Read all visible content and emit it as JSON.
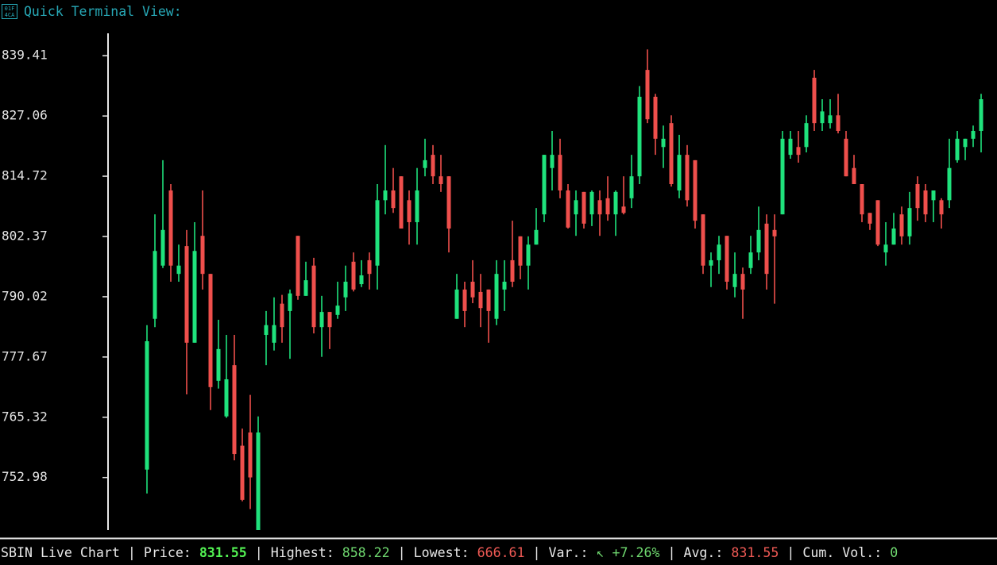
{
  "header": {
    "icon_lines": [
      "01F",
      "4CA"
    ],
    "title": "Quick Terminal View:"
  },
  "chart_data": {
    "type": "candlestick",
    "up_color": "#1fe27c",
    "down_color": "#ef4f4c",
    "ylim": [
      742.2,
      844.0
    ],
    "yticks": [
      839.41,
      827.06,
      814.72,
      802.37,
      790.02,
      777.67,
      765.32,
      752.98
    ],
    "grid": false,
    "open": [
      754.6,
      785.5,
      796.4,
      811.8,
      794.7,
      800.4,
      780.6,
      802.5,
      794.7,
      772.8,
      765.5,
      776.0,
      759.5,
      762.2,
      742.2,
      782.2,
      780.6,
      788.6,
      787.1,
      802.5,
      790.2,
      796.4,
      783.8,
      786.9,
      786.3,
      789.9,
      797.2,
      792.6,
      797.5,
      796.4,
      809.8,
      811.8,
      814.7,
      809.8,
      805.3,
      816.4,
      819.1,
      814.7,
      814.7,
      785.5,
      791.5,
      793.1,
      791.0,
      791.5,
      785.5,
      791.5,
      797.5,
      802.4,
      796.4,
      800.7,
      806.9,
      816.4,
      819.1,
      811.8,
      806.9,
      811.5,
      806.9,
      809.8,
      810.2,
      806.9,
      808.5,
      810.2,
      814.7,
      836.5,
      831.0,
      820.7,
      825.6,
      811.8,
      819.1,
      818.0,
      806.9,
      796.4,
      797.5,
      802.5,
      792.0,
      794.7,
      795.9,
      799.1,
      805.0,
      803.7,
      806.9,
      819.1,
      820.7,
      820.7,
      834.9,
      825.6,
      825.6,
      827.2,
      822.4,
      816.4,
      813.1,
      807.2,
      809.8,
      799.1,
      800.7,
      806.9,
      802.4,
      813.1,
      811.8,
      809.8,
      809.8,
      809.8,
      818.0,
      820.7,
      822.4,
      824.0
    ],
    "high": [
      784.2,
      806.9,
      818.0,
      813.1,
      800.7,
      803.7,
      805.3,
      811.8,
      794.7,
      785.3,
      782.2,
      782.2,
      763.0,
      769.9,
      765.5,
      787.1,
      789.9,
      790.4,
      791.5,
      802.5,
      797.2,
      798.0,
      790.2,
      786.9,
      793.1,
      796.4,
      799.1,
      797.5,
      799.1,
      813.1,
      821.1,
      816.4,
      814.7,
      811.8,
      816.4,
      822.4,
      821.1,
      819.1,
      814.7,
      794.7,
      793.1,
      797.5,
      794.7,
      791.5,
      797.5,
      797.5,
      805.6,
      802.4,
      802.4,
      808.2,
      819.1,
      824.0,
      822.4,
      813.1,
      811.8,
      811.5,
      811.8,
      811.8,
      814.7,
      811.8,
      814.7,
      819.1,
      833.2,
      840.7,
      831.6,
      825.1,
      827.2,
      823.2,
      821.1,
      818.0,
      806.9,
      799.1,
      802.5,
      802.5,
      799.1,
      796.0,
      802.5,
      808.5,
      806.9,
      806.9,
      824.0,
      824.0,
      824.0,
      827.2,
      836.5,
      830.5,
      830.5,
      831.6,
      824.0,
      819.1,
      813.1,
      807.2,
      809.8,
      805.3,
      807.2,
      808.5,
      811.5,
      814.7,
      813.1,
      811.8,
      810.2,
      822.4,
      824.0,
      822.4,
      825.1,
      831.6
    ],
    "low": [
      749.7,
      783.8,
      795.9,
      793.1,
      793.1,
      770.0,
      780.6,
      791.5,
      766.8,
      771.2,
      765.2,
      756.5,
      748.1,
      746.5,
      742.2,
      776.0,
      779.0,
      780.6,
      777.3,
      789.4,
      790.2,
      782.5,
      777.7,
      779.3,
      785.5,
      787.1,
      791.1,
      792.0,
      791.5,
      791.5,
      806.9,
      807.2,
      804.0,
      800.7,
      800.7,
      814.7,
      813.1,
      811.5,
      799.1,
      785.5,
      783.8,
      788.7,
      783.8,
      780.6,
      784.2,
      787.1,
      792.0,
      793.6,
      791.5,
      800.7,
      805.3,
      811.8,
      810.2,
      804.0,
      802.5,
      804.0,
      804.5,
      802.5,
      805.6,
      802.5,
      806.9,
      808.2,
      813.1,
      825.6,
      819.1,
      816.4,
      812.6,
      810.2,
      808.5,
      804.0,
      794.7,
      792.0,
      794.7,
      791.5,
      789.9,
      785.5,
      794.7,
      797.5,
      791.5,
      788.6,
      806.9,
      818.3,
      817.5,
      819.6,
      824.0,
      824.0,
      824.5,
      823.5,
      814.7,
      813.1,
      805.3,
      803.7,
      800.4,
      796.4,
      800.7,
      800.7,
      800.7,
      805.6,
      805.3,
      805.3,
      804.0,
      808.2,
      817.5,
      818.0,
      820.7,
      819.6
    ],
    "close": [
      780.9,
      799.4,
      803.7,
      796.4,
      796.4,
      780.6,
      799.4,
      794.7,
      771.5,
      779.3,
      773.1,
      757.8,
      748.4,
      753.0,
      762.2,
      784.2,
      784.2,
      783.8,
      790.7,
      790.2,
      793.4,
      783.8,
      786.9,
      783.8,
      788.2,
      793.1,
      791.5,
      794.4,
      794.7,
      809.8,
      811.8,
      808.2,
      804.0,
      805.3,
      811.8,
      818.0,
      814.7,
      813.1,
      804.0,
      791.5,
      787.1,
      789.9,
      787.7,
      787.1,
      794.7,
      793.1,
      793.1,
      796.4,
      800.7,
      803.7,
      819.1,
      819.1,
      811.8,
      804.2,
      809.8,
      805.0,
      811.5,
      806.9,
      806.9,
      811.5,
      807.2,
      814.7,
      831.0,
      826.4,
      822.4,
      822.4,
      813.1,
      819.1,
      809.8,
      805.6,
      796.4,
      797.5,
      800.7,
      793.1,
      794.7,
      791.5,
      799.1,
      803.7,
      794.7,
      802.4,
      822.4,
      822.4,
      819.1,
      825.6,
      825.6,
      828.0,
      827.2,
      824.0,
      814.7,
      813.1,
      806.9,
      805.0,
      800.7,
      800.7,
      804.0,
      802.4,
      808.2,
      808.2,
      806.9,
      811.8,
      806.9,
      816.4,
      822.4,
      822.4,
      824.0,
      830.5
    ]
  },
  "status_bar": {
    "title": "SBIN Live Chart",
    "separator": "|",
    "items": [
      {
        "label": "Price:",
        "value": "831.55",
        "color": "#52f052",
        "bold": true
      },
      {
        "label": "Highest:",
        "value": "858.22",
        "color": "#6fd86f",
        "bold": false
      },
      {
        "label": "Lowest:",
        "value": "666.61",
        "color": "#f05a55",
        "bold": false
      },
      {
        "label": "Var.:",
        "arrow": "↖",
        "value": "+7.26%",
        "color": "#6fd86f",
        "bold": false
      },
      {
        "label": "Avg.:",
        "value": "831.55",
        "color": "#f05a55",
        "bold": false
      },
      {
        "label": "Cum. Vol.:",
        "value": "0",
        "color": "#6fd86f",
        "bold": false
      }
    ]
  }
}
